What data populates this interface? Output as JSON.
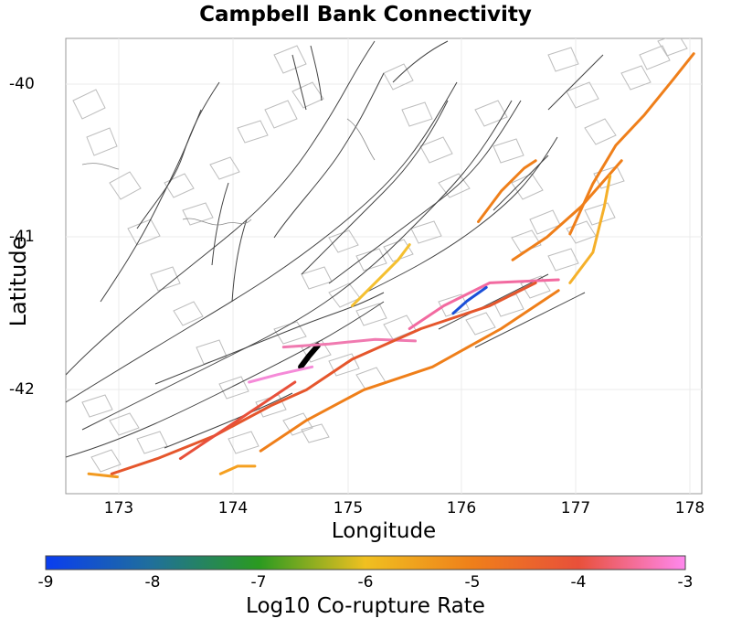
{
  "title": "Campbell Bank Connectivity",
  "axes": {
    "xlabel": "Longitude",
    "ylabel": "Latitude",
    "xticks": [
      "173",
      "174",
      "175",
      "176",
      "177",
      "178"
    ],
    "yticks": [
      "-40",
      "-41",
      "-42"
    ]
  },
  "colorbar": {
    "label": "Log10 Co-rupture Rate",
    "ticks": [
      "-9",
      "-8",
      "-7",
      "-6",
      "-5",
      "-4",
      "-3"
    ],
    "colors": [
      "#0a3df0",
      "#2a9a20",
      "#f0c020",
      "#ef7f1a",
      "#e2502a",
      "#f070a0",
      "#ff88ee"
    ]
  },
  "chart_data": {
    "type": "map",
    "title": "Campbell Bank Connectivity",
    "xlabel": "Longitude",
    "ylabel": "Latitude",
    "xlim": [
      172.5,
      178.05
    ],
    "ylim": [
      -42.68,
      -39.7
    ],
    "colorbar_range": [
      -9,
      -3
    ],
    "faults": [
      {
        "name": "Campbell Bank",
        "rate": null,
        "color": "#000000",
        "lonlat": [
          [
            174.55,
            -41.85
          ],
          [
            174.62,
            -41.78
          ],
          [
            174.7,
            -41.71
          ]
        ]
      },
      {
        "name": "outer-east-1",
        "rate": -5,
        "color": "#ef7f1a",
        "lonlat": [
          [
            176.9,
            -40.98
          ],
          [
            177.1,
            -40.65
          ],
          [
            177.3,
            -40.4
          ],
          [
            177.55,
            -40.2
          ],
          [
            177.8,
            -39.97
          ],
          [
            177.98,
            -39.8
          ]
        ]
      },
      {
        "name": "outer-east-2",
        "rate": -5,
        "color": "#ef7f1a",
        "lonlat": [
          [
            176.4,
            -41.15
          ],
          [
            176.7,
            -41.0
          ],
          [
            177.0,
            -40.8
          ],
          [
            177.35,
            -40.5
          ]
        ]
      },
      {
        "name": "outer-yellow",
        "rate": -6,
        "color": "#f5b02a",
        "lonlat": [
          [
            176.9,
            -41.3
          ],
          [
            177.1,
            -41.1
          ],
          [
            177.2,
            -40.8
          ],
          [
            177.25,
            -40.6
          ]
        ]
      },
      {
        "name": "mid-ridge",
        "rate": -5.2,
        "color": "#ef7f1a",
        "lonlat": [
          [
            176.1,
            -40.9
          ],
          [
            176.3,
            -40.7
          ],
          [
            176.5,
            -40.55
          ],
          [
            176.6,
            -40.5
          ]
        ]
      },
      {
        "name": "pink-upper",
        "rate": -3.6,
        "color": "#f26aa0",
        "lonlat": [
          [
            175.5,
            -41.6
          ],
          [
            175.8,
            -41.45
          ],
          [
            176.2,
            -41.3
          ],
          [
            176.8,
            -41.28
          ]
        ]
      },
      {
        "name": "blue-segment",
        "rate": -8.8,
        "color": "#1a4fd8",
        "lonlat": [
          [
            175.88,
            -41.5
          ],
          [
            176.0,
            -41.42
          ],
          [
            176.17,
            -41.33
          ]
        ]
      },
      {
        "name": "pink-mid",
        "rate": -3.4,
        "color": "#f07ab0",
        "lonlat": [
          [
            174.4,
            -41.72
          ],
          [
            174.8,
            -41.7
          ],
          [
            175.2,
            -41.67
          ],
          [
            175.55,
            -41.68
          ]
        ]
      },
      {
        "name": "pink-low",
        "rate": -3.1,
        "color": "#f58ad8",
        "lonlat": [
          [
            174.1,
            -41.95
          ],
          [
            174.35,
            -41.9
          ],
          [
            174.65,
            -41.85
          ]
        ]
      },
      {
        "name": "red-coast",
        "rate": -4.6,
        "color": "#e5562c",
        "lonlat": [
          [
            172.9,
            -42.55
          ],
          [
            173.3,
            -42.45
          ],
          [
            173.8,
            -42.3
          ],
          [
            174.3,
            -42.1
          ],
          [
            174.6,
            -42.0
          ],
          [
            175.0,
            -41.8
          ],
          [
            175.6,
            -41.6
          ],
          [
            176.2,
            -41.45
          ],
          [
            176.6,
            -41.3
          ]
        ]
      },
      {
        "name": "red-inner",
        "rate": -4.3,
        "color": "#e8503a",
        "lonlat": [
          [
            173.5,
            -42.45
          ],
          [
            173.9,
            -42.25
          ],
          [
            174.2,
            -42.1
          ],
          [
            174.5,
            -41.95
          ]
        ]
      },
      {
        "name": "orange-south",
        "rate": -5.0,
        "color": "#ef7f1a",
        "lonlat": [
          [
            174.2,
            -42.4
          ],
          [
            174.6,
            -42.2
          ],
          [
            175.1,
            -42.0
          ],
          [
            175.7,
            -41.85
          ],
          [
            176.3,
            -41.6
          ],
          [
            176.8,
            -41.35
          ]
        ]
      },
      {
        "name": "yellow-north",
        "rate": -6.2,
        "color": "#f5c030",
        "lonlat": [
          [
            175.0,
            -41.45
          ],
          [
            175.2,
            -41.3
          ],
          [
            175.4,
            -41.15
          ],
          [
            175.5,
            -41.05
          ]
        ]
      },
      {
        "name": "orange-small",
        "rate": -5.4,
        "color": "#f29a20",
        "lonlat": [
          [
            172.7,
            -42.55
          ],
          [
            172.95,
            -42.57
          ]
        ]
      },
      {
        "name": "orange-south-tip",
        "rate": -5.6,
        "color": "#f5a020",
        "lonlat": [
          [
            173.85,
            -42.55
          ],
          [
            174.0,
            -42.5
          ],
          [
            174.15,
            -42.5
          ]
        ]
      }
    ]
  }
}
